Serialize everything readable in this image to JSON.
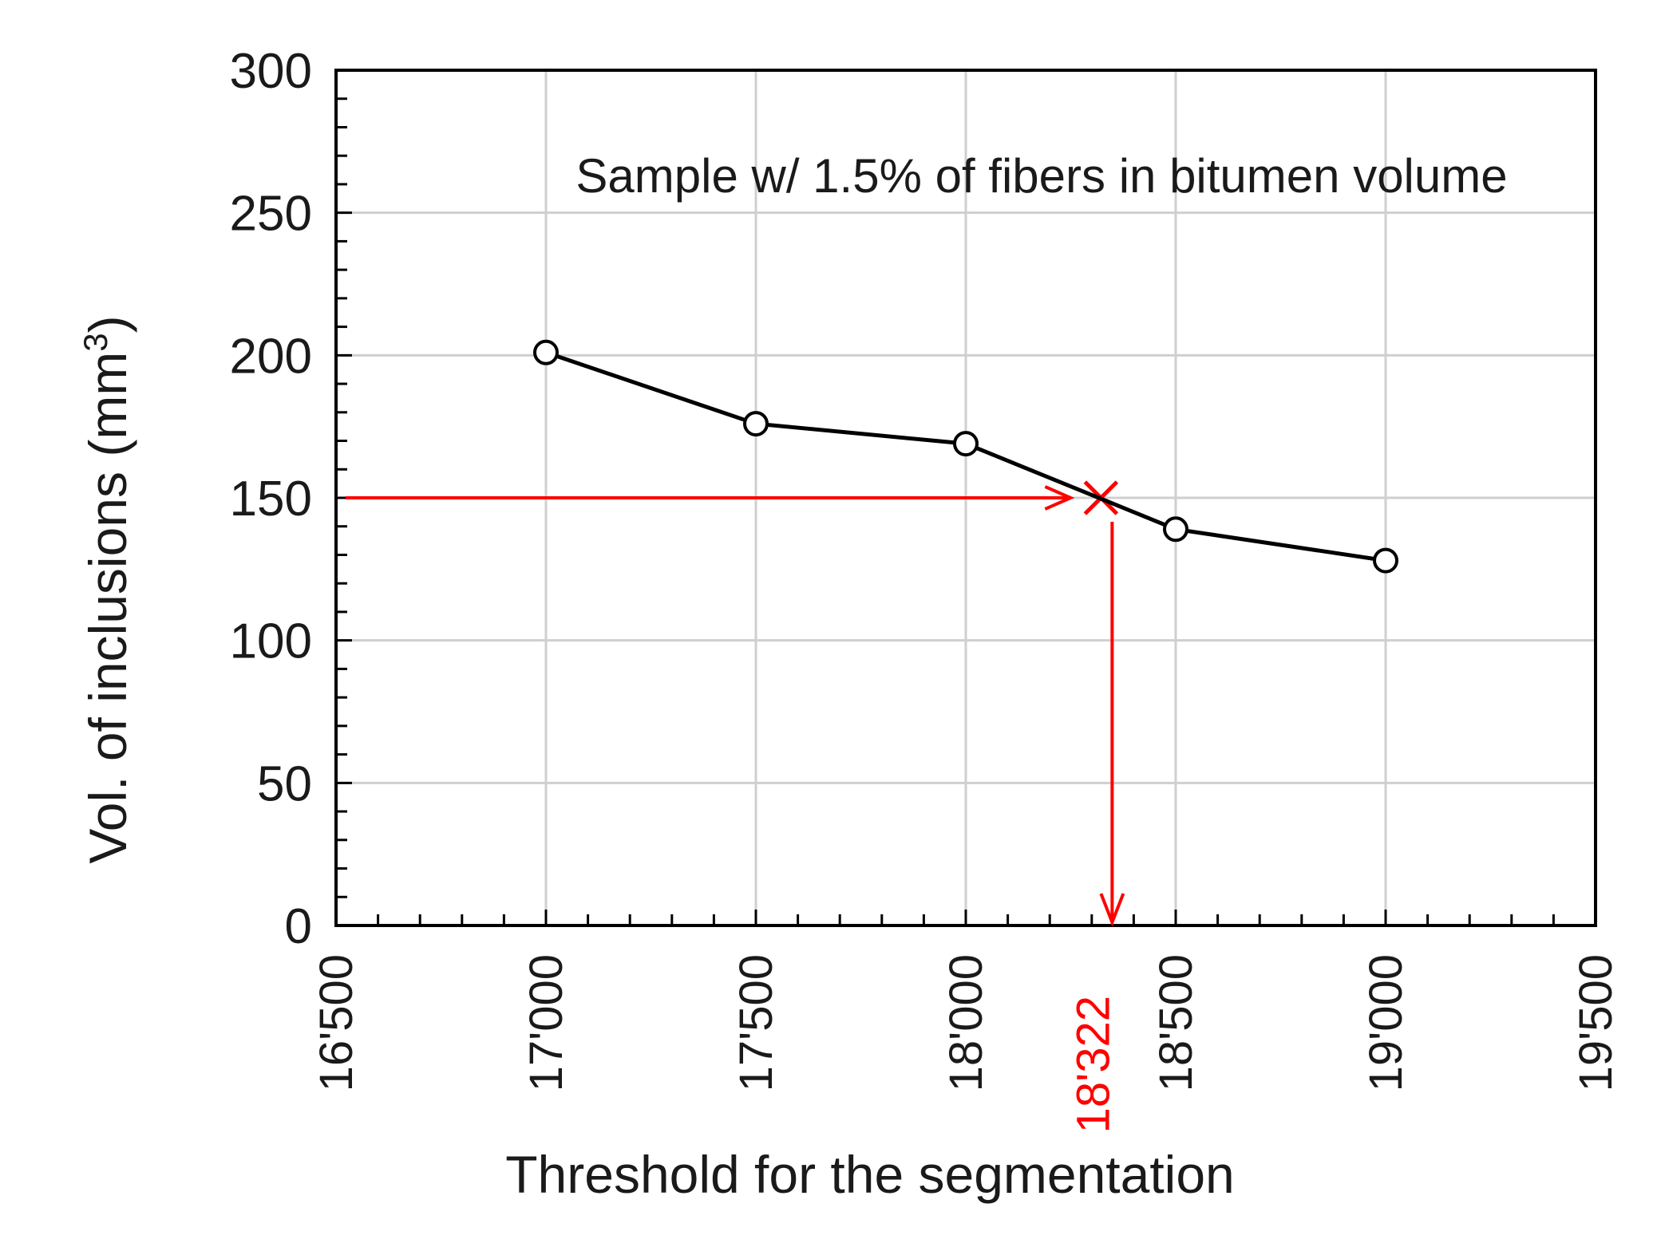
{
  "chart_data": {
    "type": "line",
    "xlabel": "Threshold  for the segmentation",
    "ylabel_main": "Vol. of inclusions (mm",
    "ylabel_sup": "3",
    "ylabel_end": ")",
    "annotation": "Sample w/ 1.5% of fibers in bitumen volume",
    "xlim": [
      16500,
      19500
    ],
    "ylim": [
      0,
      300
    ],
    "x_ticks": [
      16500,
      17000,
      17500,
      18000,
      18500,
      19000,
      19500
    ],
    "x_tick_labels": [
      "16'500",
      "17'000",
      "17'500",
      "18'000",
      "18'500",
      "19'000",
      "19'500"
    ],
    "y_ticks": [
      0,
      50,
      100,
      150,
      200,
      250,
      300
    ],
    "y_tick_labels": [
      "0",
      "50",
      "100",
      "150",
      "200",
      "250",
      "300"
    ],
    "grid": true,
    "series": [
      {
        "name": "Sample w/ 1.5% of fibers in bitumen volume",
        "x": [
          17000,
          17500,
          18000,
          18500,
          19000
        ],
        "y": [
          201,
          176,
          169,
          139,
          128
        ],
        "color": "#000000"
      }
    ],
    "highlight": {
      "x": 18322,
      "y": 150,
      "label": "18'322",
      "color": "#ff0000"
    }
  }
}
